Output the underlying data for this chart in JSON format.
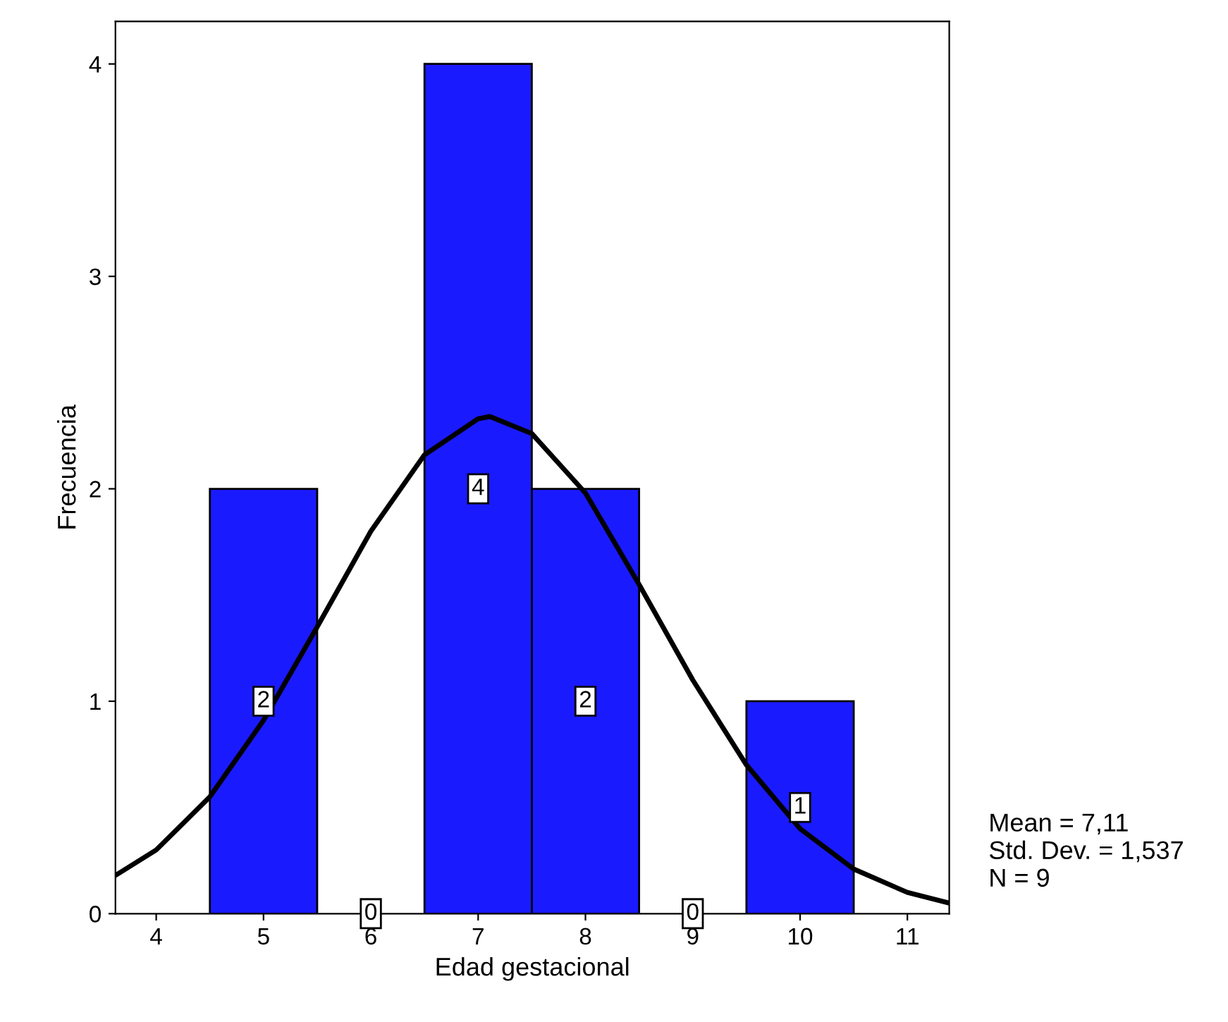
{
  "chart_data": {
    "type": "histogram",
    "xlabel": "Edad gestacional",
    "ylabel": "Frecuencia",
    "bins": [
      4.5,
      5.5,
      6.5,
      7.5,
      8.5,
      9.5,
      10.5
    ],
    "values": [
      2,
      0,
      4,
      2,
      0,
      1
    ],
    "color": "#1a1aff",
    "value_labels": [
      "2",
      "0",
      "4",
      "2",
      "0",
      "1"
    ],
    "series": [
      {
        "type": "line",
        "color": "#000000",
        "x": [
          3.62,
          4,
          4.5,
          5,
          5.5,
          6,
          6.5,
          7,
          7.11,
          7.5,
          8,
          8.5,
          9,
          9.5,
          10,
          10.5,
          11,
          11.39
        ],
        "values": [
          0.18,
          0.3,
          0.55,
          0.91,
          1.35,
          1.8,
          2.16,
          2.33,
          2.34,
          2.26,
          1.98,
          1.55,
          1.1,
          0.7,
          0.4,
          0.21,
          0.1,
          0.05
        ]
      }
    ],
    "xlim": [
      3.62,
      11.39
    ],
    "xticks": [
      4,
      5,
      6,
      7,
      8,
      9,
      10,
      11
    ],
    "ylim": [
      0,
      4.2
    ],
    "yticks": [
      0,
      1,
      2,
      3,
      4
    ],
    "grid": false,
    "legend": false,
    "annotations": [
      "Mean = 7,11",
      "Std. Dev. = 1,537",
      "N = 9"
    ]
  }
}
